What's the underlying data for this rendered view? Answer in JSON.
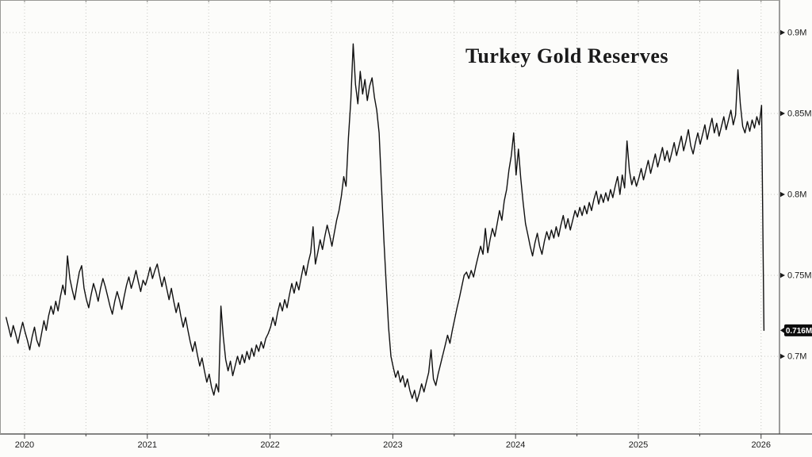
{
  "chart_data": {
    "type": "line",
    "title": "Turkey Gold Reserves",
    "xlabel": "",
    "ylabel": "",
    "series_name": "Turkey Gold Reserves",
    "grid": "dotted",
    "legend": "none",
    "line_color": "#111111",
    "background_color": "#fcfcfa",
    "xlim": [
      2019.8,
      2026.15
    ],
    "ylim": [
      0.652,
      0.9201
    ],
    "x_start": 2019.85,
    "x_step": 0.019231,
    "x_ticks": [
      {
        "value": 2020,
        "label": "2020"
      },
      {
        "value": 2021,
        "label": "2021"
      },
      {
        "value": 2022,
        "label": "2022"
      },
      {
        "value": 2023,
        "label": "2023"
      },
      {
        "value": 2024,
        "label": "2024"
      },
      {
        "value": 2025,
        "label": "2025"
      },
      {
        "value": 2026,
        "label": "2026"
      }
    ],
    "y_ticks": [
      {
        "value": 0.7,
        "label": "0.7M"
      },
      {
        "value": 0.75,
        "label": "0.75M"
      },
      {
        "value": 0.8,
        "label": "0.8M"
      },
      {
        "value": 0.85,
        "label": "0.85M"
      },
      {
        "value": 0.9,
        "label": "0.9M"
      }
    ],
    "last_point": {
      "value": 0.716,
      "label": "0.716M"
    },
    "values": [
      0.724,
      0.718,
      0.712,
      0.719,
      0.714,
      0.708,
      0.715,
      0.721,
      0.715,
      0.71,
      0.704,
      0.712,
      0.718,
      0.71,
      0.706,
      0.714,
      0.722,
      0.716,
      0.725,
      0.731,
      0.726,
      0.734,
      0.728,
      0.737,
      0.744,
      0.738,
      0.762,
      0.748,
      0.741,
      0.735,
      0.744,
      0.752,
      0.756,
      0.742,
      0.735,
      0.73,
      0.738,
      0.745,
      0.74,
      0.734,
      0.742,
      0.748,
      0.743,
      0.737,
      0.731,
      0.726,
      0.734,
      0.74,
      0.735,
      0.729,
      0.737,
      0.744,
      0.749,
      0.742,
      0.747,
      0.753,
      0.746,
      0.74,
      0.747,
      0.744,
      0.749,
      0.755,
      0.748,
      0.753,
      0.757,
      0.75,
      0.743,
      0.749,
      0.742,
      0.735,
      0.742,
      0.734,
      0.727,
      0.733,
      0.725,
      0.718,
      0.724,
      0.716,
      0.709,
      0.703,
      0.709,
      0.701,
      0.694,
      0.699,
      0.691,
      0.684,
      0.689,
      0.681,
      0.676,
      0.683,
      0.678,
      0.731,
      0.712,
      0.698,
      0.691,
      0.697,
      0.688,
      0.694,
      0.7,
      0.695,
      0.701,
      0.696,
      0.703,
      0.698,
      0.705,
      0.7,
      0.707,
      0.703,
      0.709,
      0.705,
      0.711,
      0.714,
      0.718,
      0.724,
      0.719,
      0.727,
      0.733,
      0.728,
      0.735,
      0.73,
      0.738,
      0.745,
      0.739,
      0.746,
      0.741,
      0.749,
      0.756,
      0.75,
      0.758,
      0.764,
      0.78,
      0.757,
      0.764,
      0.772,
      0.766,
      0.774,
      0.781,
      0.775,
      0.768,
      0.776,
      0.784,
      0.79,
      0.799,
      0.811,
      0.805,
      0.835,
      0.858,
      0.893,
      0.868,
      0.856,
      0.876,
      0.862,
      0.871,
      0.858,
      0.867,
      0.872,
      0.86,
      0.852,
      0.838,
      0.805,
      0.772,
      0.745,
      0.718,
      0.7,
      0.693,
      0.687,
      0.691,
      0.684,
      0.688,
      0.681,
      0.686,
      0.679,
      0.674,
      0.679,
      0.672,
      0.677,
      0.683,
      0.678,
      0.684,
      0.69,
      0.704,
      0.686,
      0.682,
      0.689,
      0.695,
      0.701,
      0.707,
      0.713,
      0.708,
      0.716,
      0.723,
      0.73,
      0.736,
      0.743,
      0.75,
      0.752,
      0.748,
      0.753,
      0.749,
      0.756,
      0.762,
      0.768,
      0.763,
      0.779,
      0.764,
      0.772,
      0.779,
      0.774,
      0.782,
      0.79,
      0.784,
      0.796,
      0.803,
      0.815,
      0.824,
      0.838,
      0.812,
      0.828,
      0.81,
      0.795,
      0.782,
      0.775,
      0.768,
      0.762,
      0.77,
      0.776,
      0.768,
      0.763,
      0.771,
      0.777,
      0.772,
      0.778,
      0.773,
      0.78,
      0.774,
      0.781,
      0.787,
      0.779,
      0.785,
      0.778,
      0.784,
      0.79,
      0.786,
      0.792,
      0.787,
      0.793,
      0.788,
      0.795,
      0.79,
      0.797,
      0.802,
      0.794,
      0.8,
      0.795,
      0.801,
      0.796,
      0.803,
      0.798,
      0.805,
      0.811,
      0.8,
      0.812,
      0.804,
      0.833,
      0.815,
      0.806,
      0.811,
      0.805,
      0.81,
      0.816,
      0.809,
      0.815,
      0.821,
      0.813,
      0.819,
      0.825,
      0.817,
      0.823,
      0.829,
      0.821,
      0.827,
      0.82,
      0.826,
      0.832,
      0.824,
      0.83,
      0.836,
      0.827,
      0.833,
      0.84,
      0.83,
      0.825,
      0.832,
      0.838,
      0.831,
      0.837,
      0.843,
      0.834,
      0.841,
      0.847,
      0.838,
      0.844,
      0.836,
      0.842,
      0.848,
      0.84,
      0.846,
      0.852,
      0.843,
      0.849,
      0.877,
      0.856,
      0.842,
      0.838,
      0.845,
      0.839,
      0.846,
      0.841,
      0.848,
      0.843,
      0.855,
      0.716
    ]
  }
}
